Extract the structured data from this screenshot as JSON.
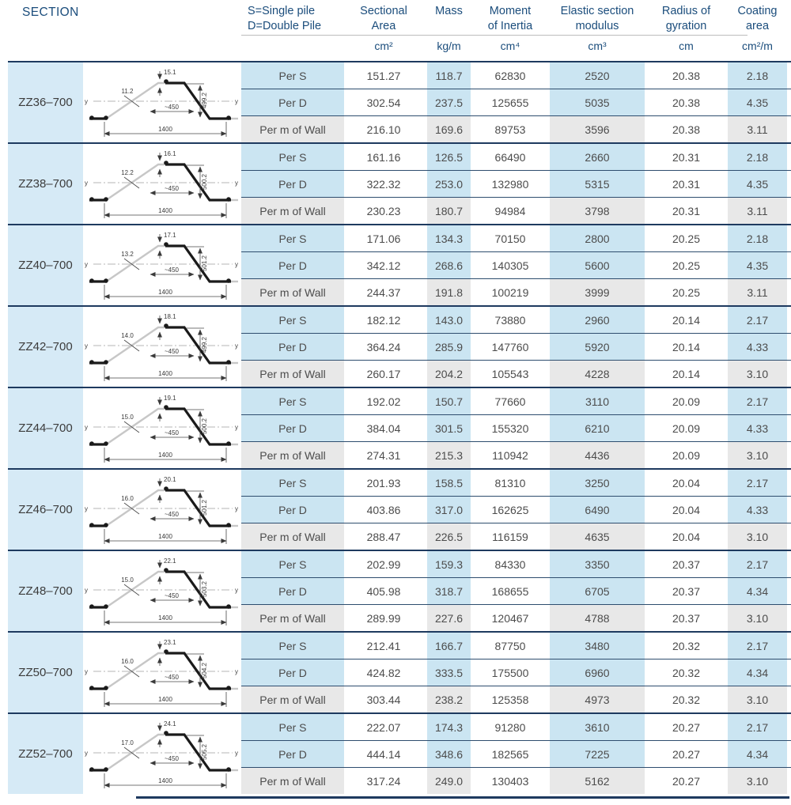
{
  "colors": {
    "navy": "#1e3a5f",
    "navy-light": "#2e4d6e",
    "navy-text": "#1b4d7c",
    "band-blue": "#cbe5f2",
    "section-blue": "#d6eaf6",
    "row-gray": "#e8e8e8"
  },
  "header": {
    "section": "SECTION",
    "legend_line1": "S=Single pile",
    "legend_line2": "D=Double Pile",
    "columns": [
      {
        "line1": "Sectional",
        "line2": "Area",
        "unit": "cm²"
      },
      {
        "line1": "Mass",
        "line2": "",
        "unit": "kg/m"
      },
      {
        "line1": "Moment",
        "line2": "of Inertia",
        "unit": "cm⁴"
      },
      {
        "line1": "Elastic section",
        "line2": "modulus",
        "unit": "cm³"
      },
      {
        "line1": "Radius of",
        "line2": "gyration",
        "unit": "cm"
      },
      {
        "line1": "Coating",
        "line2": "area",
        "unit": "cm²/m"
      }
    ]
  },
  "row_labels": [
    "Per S",
    "Per D",
    "Per m of Wall"
  ],
  "column_keys": [
    "sectional-area",
    "mass",
    "moment-of-inertia",
    "elastic-modulus",
    "radius-of-gyration",
    "coating-area"
  ],
  "diagram_labels": {
    "axis": "y"
  },
  "sections": [
    {
      "name": "ZZ36–700",
      "diagram": {
        "flange": "15.1",
        "web": "11.2",
        "width": "~450",
        "height": "499.2",
        "total": "1400"
      },
      "rows": [
        [
          "151.27",
          "118.7",
          "62830",
          "2520",
          "20.38",
          "2.18"
        ],
        [
          "302.54",
          "237.5",
          "125655",
          "5035",
          "20.38",
          "4.35"
        ],
        [
          "216.10",
          "169.6",
          "89753",
          "3596",
          "20.38",
          "3.11"
        ]
      ]
    },
    {
      "name": "ZZ38–700",
      "diagram": {
        "flange": "16.1",
        "web": "12.2",
        "width": "~450",
        "height": "500.2",
        "total": "1400"
      },
      "rows": [
        [
          "161.16",
          "126.5",
          "66490",
          "2660",
          "20.31",
          "2.18"
        ],
        [
          "322.32",
          "253.0",
          "132980",
          "5315",
          "20.31",
          "4.35"
        ],
        [
          "230.23",
          "180.7",
          "94984",
          "3798",
          "20.31",
          "3.11"
        ]
      ]
    },
    {
      "name": "ZZ40–700",
      "diagram": {
        "flange": "17.1",
        "web": "13.2",
        "width": "~450",
        "height": "501.2",
        "total": "1400"
      },
      "rows": [
        [
          "171.06",
          "134.3",
          "70150",
          "2800",
          "20.25",
          "2.18"
        ],
        [
          "342.12",
          "268.6",
          "140305",
          "5600",
          "20.25",
          "4.35"
        ],
        [
          "244.37",
          "191.8",
          "100219",
          "3999",
          "20.25",
          "3.11"
        ]
      ]
    },
    {
      "name": "ZZ42–700",
      "diagram": {
        "flange": "18.1",
        "web": "14.0",
        "width": "~450",
        "height": "499.2",
        "total": "1400"
      },
      "rows": [
        [
          "182.12",
          "143.0",
          "73880",
          "2960",
          "20.14",
          "2.17"
        ],
        [
          "364.24",
          "285.9",
          "147760",
          "5920",
          "20.14",
          "4.33"
        ],
        [
          "260.17",
          "204.2",
          "105543",
          "4228",
          "20.14",
          "3.10"
        ]
      ]
    },
    {
      "name": "ZZ44–700",
      "diagram": {
        "flange": "19.1",
        "web": "15.0",
        "width": "~450",
        "height": "500.2",
        "total": "1400"
      },
      "rows": [
        [
          "192.02",
          "150.7",
          "77660",
          "3110",
          "20.09",
          "2.17"
        ],
        [
          "384.04",
          "301.5",
          "155320",
          "6210",
          "20.09",
          "4.33"
        ],
        [
          "274.31",
          "215.3",
          "110942",
          "4436",
          "20.09",
          "3.10"
        ]
      ]
    },
    {
      "name": "ZZ46–700",
      "diagram": {
        "flange": "20.1",
        "web": "16.0",
        "width": "~450",
        "height": "501.2",
        "total": "1400"
      },
      "rows": [
        [
          "201.93",
          "158.5",
          "81310",
          "3250",
          "20.04",
          "2.17"
        ],
        [
          "403.86",
          "317.0",
          "162625",
          "6490",
          "20.04",
          "4.33"
        ],
        [
          "288.47",
          "226.5",
          "116159",
          "4635",
          "20.04",
          "3.10"
        ]
      ]
    },
    {
      "name": "ZZ48–700",
      "diagram": {
        "flange": "22.1",
        "web": "15.0",
        "width": "~450",
        "height": "503.2",
        "total": "1400"
      },
      "rows": [
        [
          "202.99",
          "159.3",
          "84330",
          "3350",
          "20.37",
          "2.17"
        ],
        [
          "405.98",
          "318.7",
          "168655",
          "6705",
          "20.37",
          "4.34"
        ],
        [
          "289.99",
          "227.6",
          "120467",
          "4788",
          "20.37",
          "3.10"
        ]
      ]
    },
    {
      "name": "ZZ50–700",
      "diagram": {
        "flange": "23.1",
        "web": "16.0",
        "width": "~450",
        "height": "504.2",
        "total": "1400"
      },
      "rows": [
        [
          "212.41",
          "166.7",
          "87750",
          "3480",
          "20.32",
          "2.17"
        ],
        [
          "424.82",
          "333.5",
          "175500",
          "6960",
          "20.32",
          "4.34"
        ],
        [
          "303.44",
          "238.2",
          "125358",
          "4973",
          "20.32",
          "3.10"
        ]
      ]
    },
    {
      "name": "ZZ52–700",
      "diagram": {
        "flange": "24.1",
        "web": "17.0",
        "width": "~450",
        "height": "505.2",
        "total": "1400"
      },
      "rows": [
        [
          "222.07",
          "174.3",
          "91280",
          "3610",
          "20.27",
          "2.17"
        ],
        [
          "444.14",
          "348.6",
          "182565",
          "7225",
          "20.27",
          "4.34"
        ],
        [
          "317.24",
          "249.0",
          "130403",
          "5162",
          "20.27",
          "3.10"
        ]
      ]
    }
  ]
}
